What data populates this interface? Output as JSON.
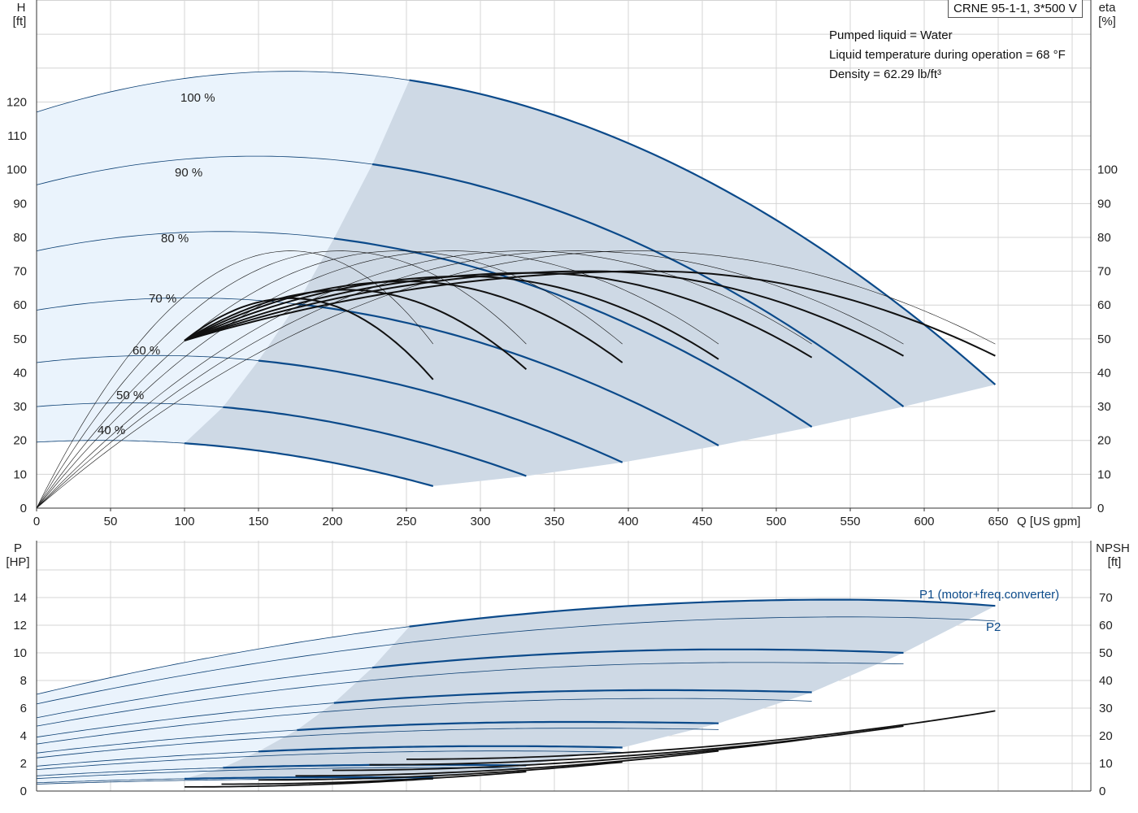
{
  "chart_data": [
    {
      "type": "line",
      "panel": "head-efficiency",
      "title": "CRNE 95-1-1, 3*500 V",
      "info": [
        "Pumped liquid = Water",
        "Liquid temperature during operation = 68 °F",
        "Density = 62.29 lb/ft³"
      ],
      "xlabel": "Q [US gpm]",
      "xlim": [
        0,
        700
      ],
      "x_ticks": [
        0,
        50,
        100,
        150,
        200,
        250,
        300,
        350,
        400,
        450,
        500,
        550,
        600,
        650
      ],
      "y_left_unit": [
        "H",
        "[ft]"
      ],
      "ylim_left": [
        0,
        145
      ],
      "y_left_ticks": [
        0,
        10,
        20,
        30,
        40,
        50,
        60,
        70,
        80,
        90,
        100,
        110,
        120
      ],
      "y_right_unit": [
        "eta",
        "[%]"
      ],
      "ylim_right": [
        0,
        145
      ],
      "y_right_ticks": [
        0,
        10,
        20,
        30,
        40,
        50,
        60,
        70,
        80,
        90,
        100
      ],
      "grid": true,
      "head_curves": [
        {
          "label": "100 %",
          "shut_off": 117,
          "q_max": 648,
          "h_end": 36.5,
          "allowed_from": 252
        },
        {
          "label": "90 %",
          "shut_off": 95.5,
          "q_max": 586,
          "h_end": 30,
          "allowed_from": 227
        },
        {
          "label": "80 %",
          "shut_off": 76,
          "q_max": 524,
          "h_end": 24,
          "allowed_from": 201
        },
        {
          "label": "70 %",
          "shut_off": 58.5,
          "q_max": 461,
          "h_end": 18.5,
          "allowed_from": 176
        },
        {
          "label": "60 %",
          "shut_off": 43,
          "q_max": 396,
          "h_end": 13.5,
          "allowed_from": 150
        },
        {
          "label": "50 %",
          "shut_off": 30,
          "q_max": 331,
          "h_end": 9.5,
          "allowed_from": 126
        },
        {
          "label": "40 %",
          "shut_off": 19.5,
          "q_max": 268,
          "h_end": 6.5,
          "allowed_from": 100
        }
      ],
      "efficiency_curves": [
        {
          "speed": "100 %",
          "q_end": 648,
          "peak": 76,
          "q_peak": 405,
          "eta_end": 48.5,
          "thin": true
        },
        {
          "speed": "90 %",
          "q_end": 586,
          "peak": 76,
          "q_peak": 365,
          "eta_end": 48.5,
          "thin": true
        },
        {
          "speed": "80 %",
          "q_end": 524,
          "peak": 76,
          "q_peak": 330,
          "eta_end": 48.5,
          "thin": true
        },
        {
          "speed": "70 %",
          "q_end": 461,
          "peak": 76,
          "q_peak": 280,
          "eta_end": 48.5,
          "thin": true
        },
        {
          "speed": "60 %",
          "q_end": 396,
          "peak": 76,
          "q_peak": 245,
          "eta_end": 48.5,
          "thin": true
        },
        {
          "speed": "50 %",
          "q_end": 331,
          "peak": 76,
          "q_peak": 205,
          "eta_end": 48.5,
          "thin": true
        },
        {
          "speed": "40 %",
          "q_end": 268,
          "peak": 76,
          "q_peak": 172,
          "eta_end": 48.5,
          "thin": true
        },
        {
          "speed": "100 %",
          "q_start": 100,
          "q_end": 648,
          "peak": 70,
          "q_peak": 415,
          "eta_end": 45
        },
        {
          "speed": "90 %",
          "q_start": 100,
          "q_end": 586,
          "peak": 70,
          "q_peak": 375,
          "eta_end": 45
        },
        {
          "speed": "80 %",
          "q_start": 100,
          "q_end": 524,
          "peak": 69.5,
          "q_peak": 335,
          "eta_end": 44.5
        },
        {
          "speed": "70 %",
          "q_start": 100,
          "q_end": 461,
          "peak": 68.5,
          "q_peak": 290,
          "eta_end": 44
        },
        {
          "speed": "60 %",
          "q_start": 100,
          "q_end": 396,
          "peak": 67,
          "q_peak": 250,
          "eta_end": 43
        },
        {
          "speed": "50 %",
          "q_start": 100,
          "q_end": 331,
          "peak": 64.5,
          "q_peak": 210,
          "eta_end": 41
        },
        {
          "speed": "40 %",
          "q_start": 100,
          "q_end": 268,
          "peak": 62,
          "q_peak": 172,
          "eta_end": 38
        }
      ]
    },
    {
      "type": "line",
      "panel": "power-npsh",
      "xlim": [
        0,
        700
      ],
      "x_ticks": [
        0,
        50,
        100,
        150,
        200,
        250,
        300,
        350,
        400,
        450,
        500,
        550,
        600,
        650
      ],
      "y_left_unit": [
        "P",
        "[HP]"
      ],
      "ylim_left": [
        0,
        16
      ],
      "y_left_ticks": [
        0,
        2,
        4,
        6,
        8,
        10,
        12,
        14
      ],
      "y_right_unit": [
        "NPSH",
        "[ft]"
      ],
      "ylim_right": [
        0,
        80
      ],
      "y_right_ticks": [
        0,
        10,
        20,
        30,
        40,
        50,
        60,
        70
      ],
      "grid": true,
      "legend": [
        "P1 (motor+freq.converter)",
        "P2"
      ],
      "p1_curves": [
        {
          "speed": "100 %",
          "p0": 7.0,
          "p_peak": 13.85,
          "q_peak": 540,
          "p_end": 13.4,
          "q_max": 648,
          "allowed_from": 252
        },
        {
          "speed": "90 %",
          "p0": 5.3,
          "p_peak": 10.25,
          "q_peak": 470,
          "p_end": 10.0,
          "q_max": 586,
          "allowed_from": 227
        },
        {
          "speed": "80 %",
          "p0": 3.9,
          "p_peak": 7.3,
          "q_peak": 420,
          "p_end": 7.15,
          "q_max": 524,
          "allowed_from": 201
        },
        {
          "speed": "70 %",
          "p0": 2.75,
          "p_peak": 5.0,
          "q_peak": 360,
          "p_end": 4.9,
          "q_max": 461,
          "allowed_from": 176
        },
        {
          "speed": "60 %",
          "p0": 1.8,
          "p_peak": 3.25,
          "q_peak": 310,
          "p_end": 3.15,
          "q_max": 396,
          "allowed_from": 150
        },
        {
          "speed": "50 %",
          "p0": 1.1,
          "p_peak": 1.9,
          "q_peak": 260,
          "p_end": 1.85,
          "q_max": 331,
          "allowed_from": 126
        },
        {
          "speed": "40 %",
          "p0": 0.6,
          "p_peak": 1.0,
          "q_peak": 210,
          "p_end": 0.97,
          "q_max": 268,
          "allowed_from": 100
        }
      ],
      "p2_curves": [
        {
          "speed": "100 %",
          "p0": 6.3,
          "p_peak": 12.6,
          "q_peak": 550,
          "p_end": 12.3,
          "q_max": 648
        },
        {
          "speed": "90 %",
          "p0": 4.7,
          "p_peak": 9.3,
          "q_peak": 480,
          "p_end": 9.2,
          "q_max": 586
        },
        {
          "speed": "80 %",
          "p0": 3.4,
          "p_peak": 6.7,
          "q_peak": 425,
          "p_end": 6.5,
          "q_max": 524
        },
        {
          "speed": "70 %",
          "p0": 2.4,
          "p_peak": 4.55,
          "q_peak": 365,
          "p_end": 4.45,
          "q_max": 461
        },
        {
          "speed": "60 %",
          "p0": 1.55,
          "p_peak": 2.9,
          "q_peak": 315,
          "p_end": 2.8,
          "q_max": 396
        },
        {
          "speed": "50 %",
          "p0": 0.9,
          "p_peak": 1.7,
          "q_peak": 265,
          "p_end": 1.65,
          "q_max": 331
        },
        {
          "speed": "40 %",
          "p0": 0.5,
          "p_peak": 0.88,
          "q_peak": 215,
          "p_end": 0.85,
          "q_max": 268
        }
      ],
      "npsh_curves": [
        {
          "speed": "100 %",
          "q_start": 250,
          "n_start": 11.5,
          "q_end": 648,
          "n_end": 29
        },
        {
          "speed": "90 %",
          "q_start": 225,
          "n_start": 9.5,
          "q_end": 586,
          "n_end": 23.5
        },
        {
          "speed": "80 %",
          "q_start": 200,
          "n_start": 7.5,
          "q_end": 524,
          "n_end": 19
        },
        {
          "speed": "70 %",
          "q_start": 175,
          "n_start": 5.5,
          "q_end": 461,
          "n_end": 14.5
        },
        {
          "speed": "60 %",
          "q_start": 150,
          "n_start": 4,
          "q_end": 396,
          "n_end": 10.5
        },
        {
          "speed": "50 %",
          "q_start": 125,
          "n_start": 2.5,
          "q_end": 331,
          "n_end": 7
        },
        {
          "speed": "40 %",
          "q_start": 100,
          "n_start": 1.5,
          "q_end": 268,
          "n_end": 4.5
        }
      ]
    }
  ]
}
